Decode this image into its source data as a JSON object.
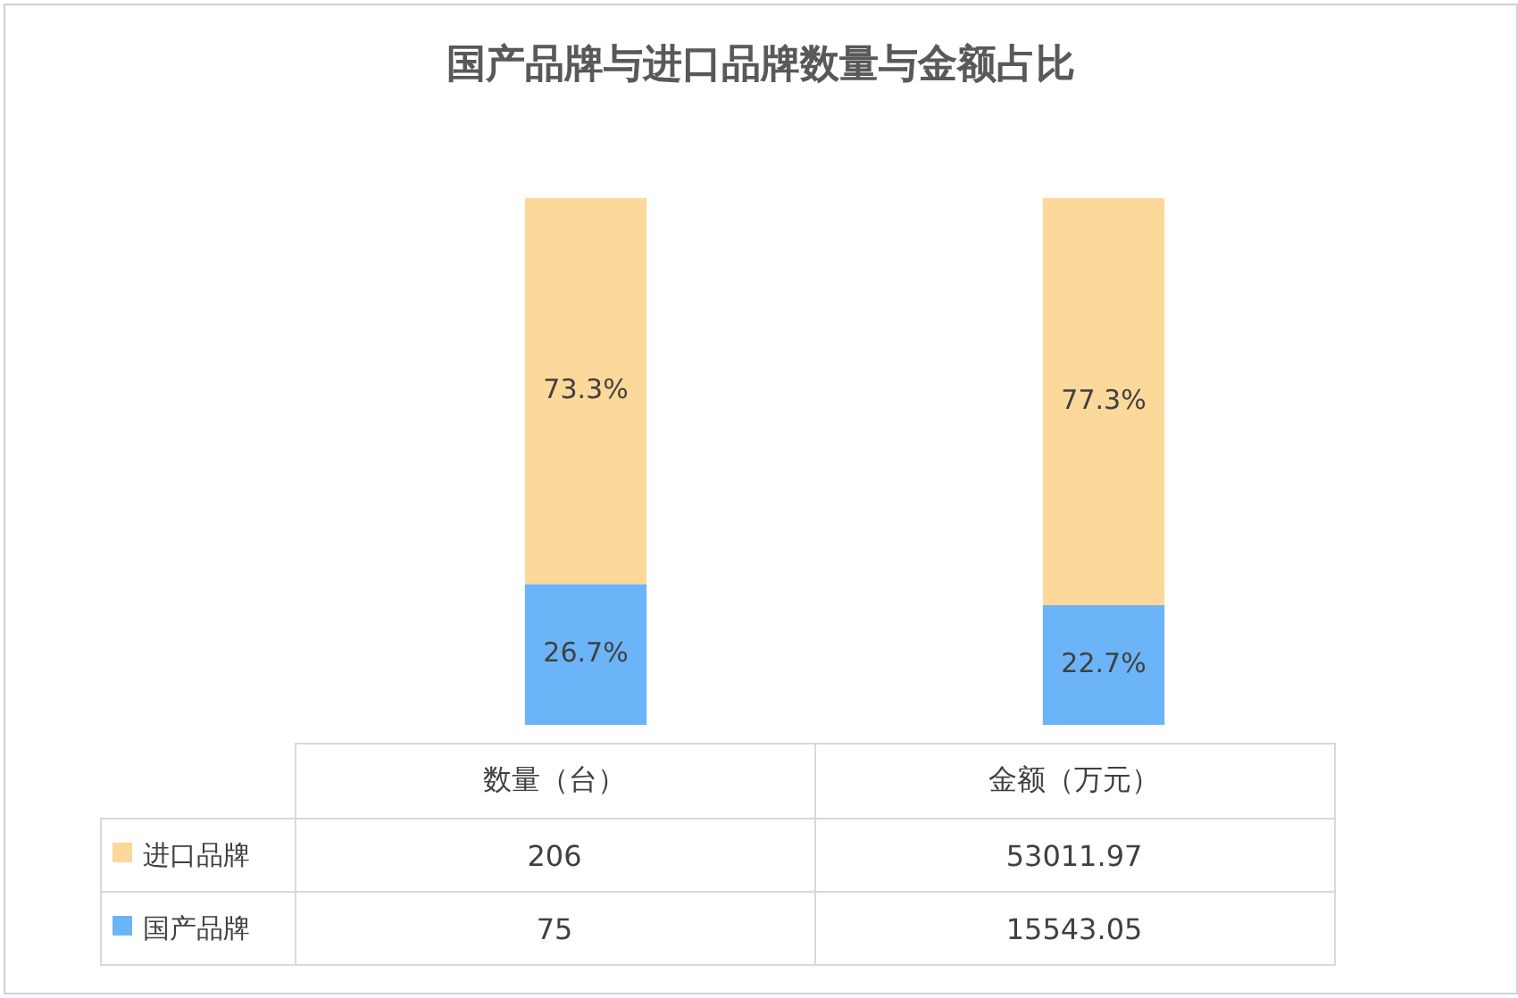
{
  "chart_data": {
    "type": "bar",
    "title": "国产品牌与进口品牌数量与金额占比",
    "categories": [
      "数量（台）",
      "金额（万元）"
    ],
    "stacked": true,
    "ylim": [
      0,
      100
    ],
    "legend": "bottom",
    "series": [
      {
        "name": "国产品牌",
        "color": "#6cb4f8",
        "values": [
          26.7,
          22.7
        ],
        "value_labels": [
          "26.7%",
          "22.7%"
        ]
      },
      {
        "name": "进口品牌",
        "color": "#fdd89b",
        "values": [
          73.3,
          77.3
        ],
        "value_labels": [
          "73.3%",
          "77.3%"
        ]
      }
    ],
    "annotations": [
      "206",
      "53011.97",
      "75",
      "15543.05"
    ]
  }
}
